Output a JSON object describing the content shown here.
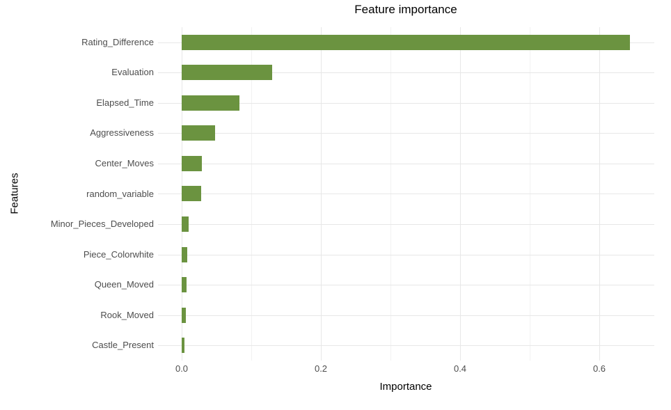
{
  "chart": {
    "title": "Feature importance",
    "xlabel": "Importance",
    "ylabel": "Features"
  },
  "chart_data": {
    "type": "bar",
    "orientation": "horizontal",
    "title": "Feature importance",
    "xlabel": "Importance",
    "ylabel": "Features",
    "categories": [
      "Rating_Difference",
      "Evaluation",
      "Elapsed_Time",
      "Aggressiveness",
      "Center_Moves",
      "random_variable",
      "Minor_Pieces_Developed",
      "Piece_Colorwhite",
      "Queen_Moved",
      "Rook_Moved",
      "Castle_Present"
    ],
    "values": [
      0.644,
      0.13,
      0.083,
      0.048,
      0.029,
      0.028,
      0.01,
      0.008,
      0.007,
      0.006,
      0.004
    ],
    "xlim": [
      -0.034,
      0.679
    ],
    "x_ticks": [
      0.0,
      0.2,
      0.4,
      0.6
    ],
    "x_tick_labels": [
      "0.0",
      "0.2",
      "0.4",
      "0.6"
    ],
    "x_minor_ticks": [
      0.1,
      0.3,
      0.5
    ],
    "grid": true,
    "legend": false,
    "bar_color": "#6b9340",
    "major_grid_color": "#e7e7e7",
    "minor_grid_color": "#f2f2f2",
    "background_color": "#ffffff",
    "tick_label_color": "#4d4d4d"
  }
}
